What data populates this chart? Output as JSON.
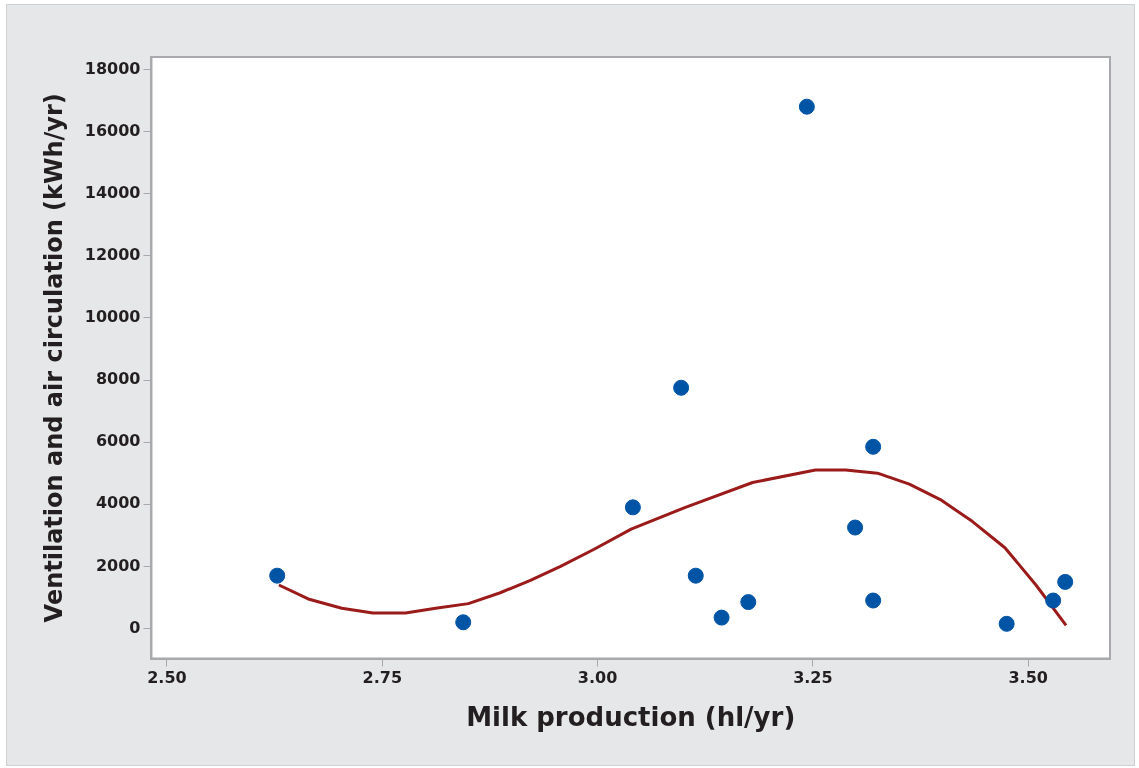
{
  "chart_data": {
    "type": "scatter",
    "xlabel": "Milk production (hl/yr)",
    "ylabel": "Ventilation and air circulation (kWh/yr)",
    "xlim": [
      2.482,
      3.595
    ],
    "xticks": [
      {
        "value": 2.5,
        "label": "2.50"
      },
      {
        "value": 2.75,
        "label": "2.75"
      },
      {
        "value": 3.0,
        "label": "3.00"
      },
      {
        "value": 3.25,
        "label": "3.25"
      },
      {
        "value": 3.5,
        "label": "3.50"
      }
    ],
    "ylim": [
      -970,
      18400
    ],
    "yticks": [
      0,
      2000,
      4000,
      6000,
      8000,
      10000,
      12000,
      14000,
      16000,
      18000
    ],
    "grid": false,
    "legend": false,
    "series": [
      {
        "type": "scatter",
        "color": "#0054a6",
        "marker": "circle",
        "x": [
          2.628,
          2.844,
          3.041,
          3.097,
          3.114,
          3.144,
          3.175,
          3.243,
          3.299,
          3.32,
          3.32,
          3.475,
          3.529,
          3.543
        ],
        "values": [
          1700,
          200,
          3900,
          7750,
          1700,
          350,
          850,
          16800,
          3250,
          5850,
          900,
          150,
          900,
          1500
        ]
      },
      {
        "type": "line",
        "color": "#9b1b1b",
        "marker": "none",
        "line_style": "solid",
        "x": [
          2.63,
          2.664,
          2.703,
          2.739,
          2.777,
          2.812,
          2.85,
          2.887,
          2.922,
          2.957,
          2.996,
          3.039,
          3.102,
          3.18,
          3.253,
          3.288,
          3.325,
          3.362,
          3.398,
          3.435,
          3.473,
          3.509,
          3.544
        ],
        "values": [
          1400,
          950,
          650,
          500,
          500,
          650,
          800,
          1150,
          1550,
          2000,
          2550,
          3200,
          3900,
          4700,
          5100,
          5100,
          5000,
          4650,
          4150,
          3450,
          2600,
          1400,
          100
        ]
      }
    ]
  }
}
